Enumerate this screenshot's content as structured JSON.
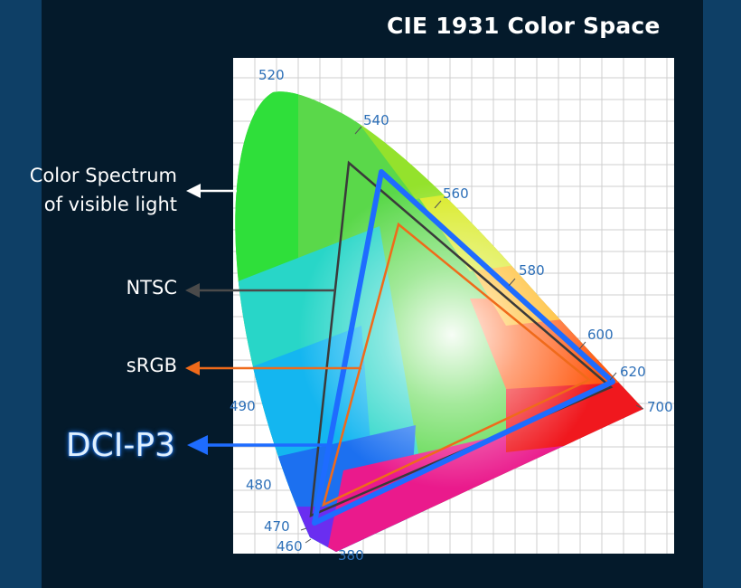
{
  "title": "CIE 1931 Color Space",
  "labels": {
    "spectrum_line1": "Color Spectrum",
    "spectrum_line2": "of visible light",
    "ntsc": "NTSC",
    "srgb": "sRGB",
    "dci": "DCI-P3"
  },
  "wavelengths": [
    "520",
    "540",
    "560",
    "580",
    "600",
    "620",
    "700",
    "490",
    "480",
    "470",
    "460",
    "380"
  ],
  "colors": {
    "ntsc": "#4a4a4a",
    "srgb": "#f06a1a",
    "dci": "#1e6cff",
    "spectrum_arrow": "#ffffff"
  }
}
